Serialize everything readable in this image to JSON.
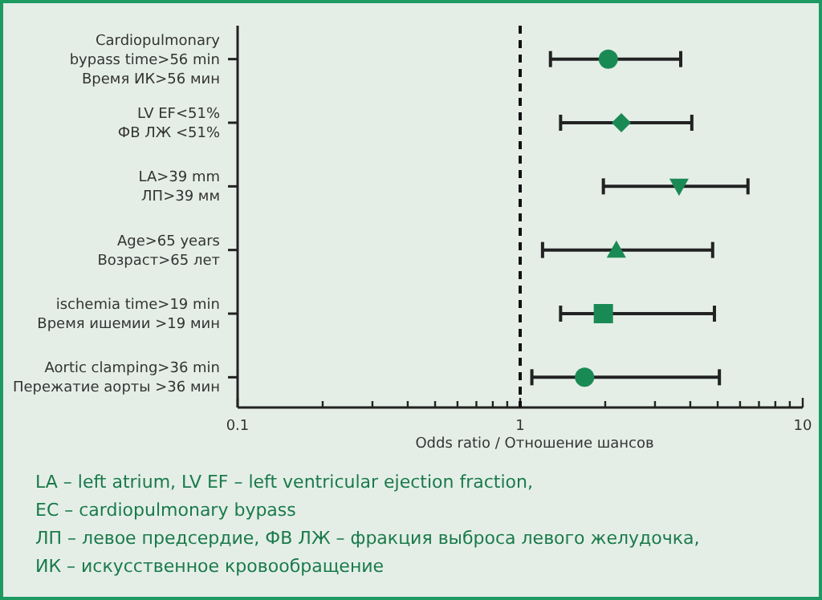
{
  "chart_data": {
    "type": "scatter",
    "orientation": "horizontal",
    "xlabel": "Odds ratio  /  Отношение шансов",
    "categories": [
      "Cardiopulmonary\nbypass time>56 min\nВремя ИК>56 мин",
      "LV EF<51%\nФВ ЛЖ <51%",
      "LA>39 mm\nЛП>39 мм",
      "Age>65 years\nВозраст>65 лет",
      "ischemia time>19 min\nВремя ишемии >19 мин",
      "Aortic clamping>36 min\nПережатие аорты >36 мин"
    ],
    "series": [
      {
        "color": "#1a8a55",
        "marker": "circle",
        "values": [
          2.05,
          null,
          null,
          null,
          null,
          null
        ],
        "errors": [
          [
            1.28,
            3.7
          ],
          null,
          null,
          null,
          null,
          null
        ]
      },
      {
        "color": "#1a8a55",
        "marker": "diamond",
        "values": [
          null,
          2.28,
          null,
          null,
          null,
          null
        ],
        "errors": [
          null,
          [
            1.39,
            4.05
          ],
          null,
          null,
          null,
          null
        ]
      },
      {
        "color": "#1a8a55",
        "marker": "triangle-down",
        "values": [
          null,
          null,
          3.65,
          null,
          null,
          null
        ],
        "errors": [
          null,
          null,
          [
            1.97,
            6.4
          ],
          null,
          null,
          null
        ]
      },
      {
        "color": "#1a8a55",
        "marker": "triangle",
        "values": [
          null,
          null,
          null,
          2.19,
          null,
          null
        ],
        "errors": [
          null,
          null,
          null,
          [
            1.2,
            4.8
          ],
          null,
          null
        ]
      },
      {
        "color": "#1a8a55",
        "marker": "square",
        "values": [
          null,
          null,
          null,
          null,
          1.97,
          null
        ],
        "errors": [
          null,
          null,
          null,
          null,
          [
            1.39,
            4.87
          ],
          null
        ]
      },
      {
        "color": "#1a8a55",
        "marker": "circle",
        "values": [
          null,
          null,
          null,
          null,
          null,
          1.69
        ],
        "errors": [
          null,
          null,
          null,
          null,
          null,
          [
            1.1,
            5.07
          ]
        ]
      }
    ],
    "xlim": [
      0.1,
      10
    ],
    "log": "x",
    "xticks": [
      0.1,
      {
        "value": 0.2,
        "label": null
      },
      {
        "value": 0.3,
        "label": null
      },
      {
        "value": 0.4,
        "label": null
      },
      {
        "value": 0.5,
        "label": null
      },
      {
        "value": 0.6,
        "label": null
      },
      {
        "value": 0.7,
        "label": null
      },
      {
        "value": 0.8,
        "label": null
      },
      {
        "value": 0.9,
        "label": null
      },
      1,
      {
        "value": 2,
        "label": null
      },
      {
        "value": 3,
        "label": null
      },
      {
        "value": 4,
        "label": null
      },
      {
        "value": 5,
        "label": null
      },
      {
        "value": 6,
        "label": null
      },
      {
        "value": 7,
        "label": null
      },
      {
        "value": 8,
        "label": null
      },
      {
        "value": 9,
        "label": null
      },
      10
    ],
    "ref_lines": [
      {
        "axis": "x",
        "value": 1,
        "line_style": "dashed",
        "color": "#111111"
      }
    ],
    "grid": false,
    "annotations": [
      "LA – left atrium, LV EF – left ventricular ejection fraction,",
      "EC – cardiopulmonary bypass",
      "ЛП – левое предсердие, ФВ ЛЖ – фракция выброса левого желудочка,",
      "ИК – искусственное кровообращение"
    ]
  }
}
